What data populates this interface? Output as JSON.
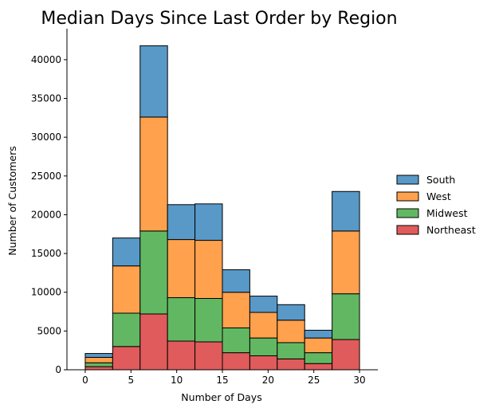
{
  "chart_data": {
    "type": "bar",
    "stacked": true,
    "title": "Median Days Since Last Order by Region",
    "xlabel": "Number of Days",
    "ylabel": "Number of Customers",
    "xlim": [
      -2,
      32
    ],
    "ylim": [
      0,
      44000
    ],
    "xticks": [
      0,
      5,
      10,
      15,
      20,
      25,
      30
    ],
    "yticks": [
      0,
      5000,
      10000,
      15000,
      20000,
      25000,
      30000,
      35000,
      40000
    ],
    "bins": [
      [
        0,
        3
      ],
      [
        3,
        6
      ],
      [
        6,
        9
      ],
      [
        9,
        12
      ],
      [
        12,
        15
      ],
      [
        15,
        18
      ],
      [
        18,
        21
      ],
      [
        21,
        24
      ],
      [
        24,
        27
      ],
      [
        27,
        30
      ]
    ],
    "series": [
      {
        "name": "Northeast",
        "color": "#e05b5b",
        "values": [
          400,
          3000,
          7200,
          3700,
          3600,
          2200,
          1800,
          1400,
          800,
          3900
        ]
      },
      {
        "name": "Midwest",
        "color": "#62b862",
        "values": [
          500,
          4300,
          10700,
          5600,
          5600,
          3200,
          2300,
          2100,
          1400,
          5900
        ]
      },
      {
        "name": "West",
        "color": "#ffa14d",
        "values": [
          700,
          6100,
          14700,
          7500,
          7500,
          4600,
          3300,
          2900,
          1900,
          8100
        ]
      },
      {
        "name": "South",
        "color": "#5899c8",
        "values": [
          500,
          3600,
          9200,
          4500,
          4700,
          2900,
          2100,
          2000,
          1000,
          5100
        ]
      }
    ],
    "legend_order": [
      "South",
      "West",
      "Midwest",
      "Northeast"
    ],
    "legend_position": "right",
    "grid": false
  }
}
